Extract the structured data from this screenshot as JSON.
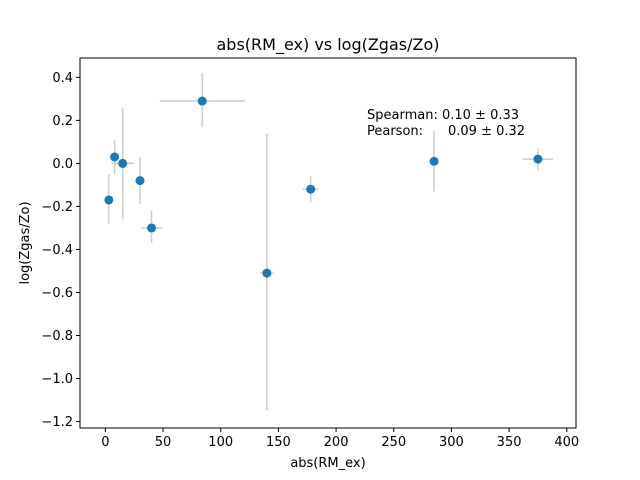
{
  "chart_data": {
    "type": "scatter",
    "title": "abs(RM_ex) vs log(Zgas/Zo)",
    "xlabel": "abs(RM_ex)",
    "ylabel": "log(Zgas/Zo)",
    "xlim": [
      -22,
      408
    ],
    "ylim": [
      -1.23,
      0.49
    ],
    "xticks": [
      0,
      50,
      100,
      150,
      200,
      250,
      300,
      350,
      400
    ],
    "yticks": [
      -1.2,
      -1.0,
      -0.8,
      -0.6,
      -0.4,
      -0.2,
      0.0,
      0.2,
      0.4
    ],
    "ytick_labels": [
      "−1.2",
      "−1.0",
      "−0.8",
      "−0.6",
      "−0.4",
      "−0.2",
      "0.0",
      "0.2",
      "0.4"
    ],
    "grid": false,
    "marker_color": "#1f77b4",
    "errorbar_color": "#cccccc",
    "points": [
      {
        "x": 3,
        "y": -0.17,
        "xerr": 0,
        "yerr_low": 0.11,
        "yerr_high": 0.12
      },
      {
        "x": 8,
        "y": 0.03,
        "xerr": 0,
        "yerr_low": 0.08,
        "yerr_high": 0.08
      },
      {
        "x": 15,
        "y": 0.0,
        "xerr": 10,
        "yerr_low": 0.26,
        "yerr_high": 0.26
      },
      {
        "x": 30,
        "y": -0.08,
        "xerr": 0,
        "yerr_low": 0.11,
        "yerr_high": 0.11
      },
      {
        "x": 40,
        "y": -0.3,
        "xerr": 9,
        "yerr_low": 0.07,
        "yerr_high": 0.08
      },
      {
        "x": 84,
        "y": 0.29,
        "xerr": 37,
        "yerr_low": 0.12,
        "yerr_high": 0.13
      },
      {
        "x": 140,
        "y": -0.51,
        "xerr": 6,
        "yerr_low": 0.64,
        "yerr_high": 0.65
      },
      {
        "x": 178,
        "y": -0.12,
        "xerr": 7,
        "yerr_low": 0.06,
        "yerr_high": 0.06
      },
      {
        "x": 285,
        "y": 0.01,
        "xerr": 4,
        "yerr_low": 0.14,
        "yerr_high": 0.14
      },
      {
        "x": 375,
        "y": 0.02,
        "xerr": 13,
        "yerr_low": 0.05,
        "yerr_high": 0.05
      }
    ],
    "annotations": {
      "spearman": "Spearman: 0.10 ± 0.33",
      "pearson_label": "Pearson:",
      "pearson_value": "0.09 ± 0.32"
    }
  }
}
